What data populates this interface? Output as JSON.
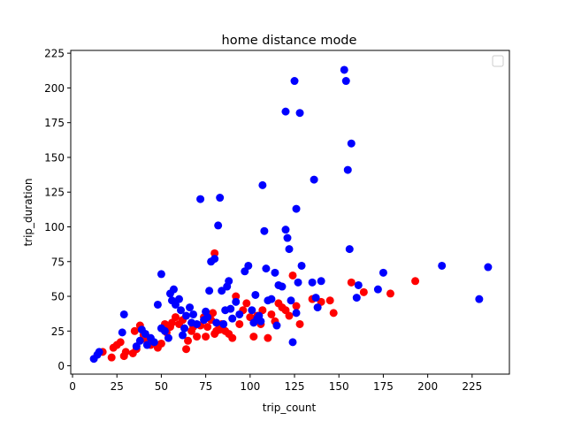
{
  "chart_data": {
    "type": "scatter",
    "title": "home distance mode",
    "xlabel": "trip_count",
    "ylabel": "trip_duration",
    "xlim": [
      -1,
      246
    ],
    "ylim": [
      -6,
      227
    ],
    "xticks": [
      0,
      25,
      50,
      75,
      100,
      125,
      150,
      175,
      200,
      225
    ],
    "yticks": [
      0,
      25,
      50,
      75,
      100,
      125,
      150,
      175,
      200,
      225
    ],
    "grid": false,
    "legend": "top-right, empty",
    "series": [
      {
        "color": "#ff0000",
        "points": [
          [
            17,
            10
          ],
          [
            22,
            6
          ],
          [
            23,
            13
          ],
          [
            25,
            15
          ],
          [
            27,
            17
          ],
          [
            29,
            7
          ],
          [
            30,
            10
          ],
          [
            34,
            9
          ],
          [
            36,
            12
          ],
          [
            35,
            25
          ],
          [
            38,
            29
          ],
          [
            40,
            22
          ],
          [
            42,
            18
          ],
          [
            44,
            15
          ],
          [
            48,
            13
          ],
          [
            50,
            16
          ],
          [
            52,
            30
          ],
          [
            53,
            24
          ],
          [
            55,
            28
          ],
          [
            56,
            31
          ],
          [
            58,
            35
          ],
          [
            60,
            30
          ],
          [
            62,
            33
          ],
          [
            64,
            12
          ],
          [
            65,
            18
          ],
          [
            67,
            25
          ],
          [
            68,
            28
          ],
          [
            70,
            21
          ],
          [
            72,
            29
          ],
          [
            74,
            35
          ],
          [
            75,
            21
          ],
          [
            76,
            28
          ],
          [
            78,
            33
          ],
          [
            79,
            38
          ],
          [
            80,
            23
          ],
          [
            82,
            26
          ],
          [
            84,
            30
          ],
          [
            86,
            25
          ],
          [
            88,
            23
          ],
          [
            90,
            20
          ],
          [
            92,
            50
          ],
          [
            94,
            30
          ],
          [
            96,
            40
          ],
          [
            98,
            45
          ],
          [
            100,
            35
          ],
          [
            102,
            21
          ],
          [
            104,
            36
          ],
          [
            106,
            30
          ],
          [
            107,
            40
          ],
          [
            110,
            20
          ],
          [
            112,
            37
          ],
          [
            114,
            32
          ],
          [
            116,
            45
          ],
          [
            118,
            42
          ],
          [
            120,
            40
          ],
          [
            122,
            36
          ],
          [
            124,
            65
          ],
          [
            126,
            43
          ],
          [
            128,
            30
          ],
          [
            135,
            48
          ],
          [
            140,
            46
          ],
          [
            145,
            47
          ],
          [
            147,
            38
          ],
          [
            157,
            60
          ],
          [
            164,
            53
          ],
          [
            179,
            52
          ],
          [
            193,
            61
          ],
          [
            80,
            81
          ],
          [
            81,
            25
          ],
          [
            83,
            26
          ]
        ]
      },
      {
        "color": "#0000ff",
        "points": [
          [
            12,
            5
          ],
          [
            14,
            8
          ],
          [
            15,
            10
          ],
          [
            28,
            24
          ],
          [
            29,
            37
          ],
          [
            36,
            14
          ],
          [
            38,
            18
          ],
          [
            39,
            26
          ],
          [
            41,
            23
          ],
          [
            42,
            15
          ],
          [
            44,
            20
          ],
          [
            46,
            17
          ],
          [
            48,
            44
          ],
          [
            50,
            27
          ],
          [
            50,
            66
          ],
          [
            52,
            25
          ],
          [
            54,
            20
          ],
          [
            55,
            52
          ],
          [
            56,
            47
          ],
          [
            57,
            55
          ],
          [
            58,
            44
          ],
          [
            60,
            48
          ],
          [
            61,
            40
          ],
          [
            62,
            22
          ],
          [
            63,
            27
          ],
          [
            64,
            36
          ],
          [
            66,
            42
          ],
          [
            67,
            31
          ],
          [
            68,
            37
          ],
          [
            70,
            30
          ],
          [
            72,
            120
          ],
          [
            74,
            33
          ],
          [
            75,
            39
          ],
          [
            76,
            35
          ],
          [
            77,
            54
          ],
          [
            78,
            75
          ],
          [
            80,
            77
          ],
          [
            81,
            31
          ],
          [
            82,
            101
          ],
          [
            83,
            121
          ],
          [
            84,
            54
          ],
          [
            85,
            30
          ],
          [
            86,
            40
          ],
          [
            87,
            57
          ],
          [
            88,
            61
          ],
          [
            89,
            41
          ],
          [
            90,
            34
          ],
          [
            92,
            46
          ],
          [
            94,
            37
          ],
          [
            97,
            68
          ],
          [
            99,
            72
          ],
          [
            101,
            40
          ],
          [
            102,
            31
          ],
          [
            103,
            51
          ],
          [
            104,
            34
          ],
          [
            105,
            36
          ],
          [
            106,
            32
          ],
          [
            107,
            130
          ],
          [
            108,
            97
          ],
          [
            109,
            70
          ],
          [
            110,
            47
          ],
          [
            112,
            48
          ],
          [
            114,
            67
          ],
          [
            115,
            29
          ],
          [
            116,
            58
          ],
          [
            118,
            57
          ],
          [
            120,
            98
          ],
          [
            121,
            92
          ],
          [
            122,
            84
          ],
          [
            124,
            17
          ],
          [
            125,
            205
          ],
          [
            126,
            113
          ],
          [
            127,
            60
          ],
          [
            128,
            182
          ],
          [
            129,
            72
          ],
          [
            120,
            183
          ],
          [
            135,
            60
          ],
          [
            136,
            134
          ],
          [
            137,
            49
          ],
          [
            138,
            42
          ],
          [
            140,
            61
          ],
          [
            153,
            213
          ],
          [
            154,
            205
          ],
          [
            155,
            141
          ],
          [
            156,
            84
          ],
          [
            157,
            160
          ],
          [
            160,
            49
          ],
          [
            161,
            58
          ],
          [
            172,
            55
          ],
          [
            175,
            67
          ],
          [
            208,
            72
          ],
          [
            229,
            48
          ],
          [
            234,
            71
          ],
          [
            123,
            47
          ],
          [
            126,
            38
          ]
        ]
      }
    ]
  }
}
